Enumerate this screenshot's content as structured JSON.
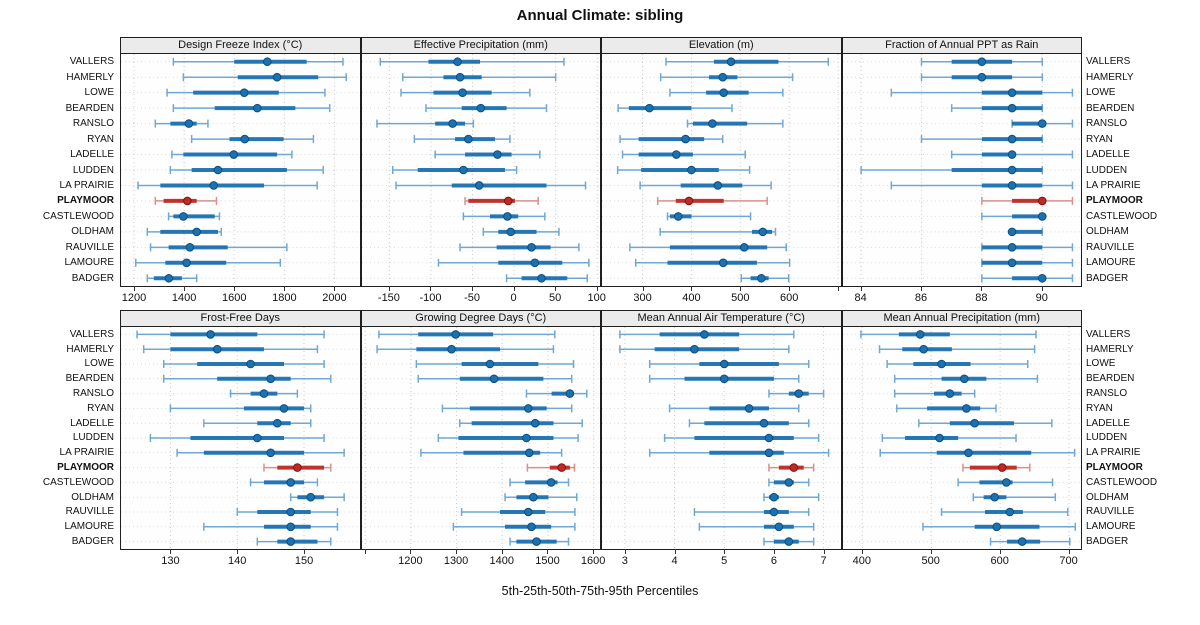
{
  "page": {
    "title": "Annual Climate: sibling",
    "caption": "5th-25th-50th-75th-95th Percentiles"
  },
  "sites": [
    "VALLERS",
    "HAMERLY",
    "LOWE",
    "BEARDEN",
    "RANSLO",
    "RYAN",
    "LADELLE",
    "LUDDEN",
    "LA PRAIRIE",
    "PLAYMOOR",
    "CASTLEWOOD",
    "OLDHAM",
    "RAUVILLE",
    "LAMOURE",
    "BADGER"
  ],
  "highlight_site": "PLAYMOOR",
  "percentiles": [
    "5th",
    "25th",
    "50th",
    "75th",
    "95th"
  ],
  "colors": {
    "blue": "#1c72b1",
    "blue_light": "#6fa8d4",
    "blue_dark": "#0d4c7c",
    "red": "#bf2a25",
    "red_light": "#d98f8c",
    "red_dark": "#7e1512",
    "grid": "#cbcbcb",
    "row_grid": "#d9d9d9",
    "strip_bg": "#ebebeb",
    "border": "#1f1f1f"
  },
  "chart_data": [
    {
      "type": "percentile-dotplot",
      "row": 0,
      "title": "Design Freeze Index (°C)",
      "xlim": [
        1148,
        2100
      ],
      "ticks": [
        {
          "v": 1200,
          "label": "1200"
        },
        {
          "v": 1400,
          "label": "1400"
        },
        {
          "v": 1600,
          "label": "1600"
        },
        {
          "v": 1800,
          "label": "1800"
        },
        {
          "v": 2000,
          "label": "2000"
        }
      ],
      "values": [
        [
          1357,
          1600,
          1732,
          1889,
          2034
        ],
        [
          1397,
          1614,
          1771,
          1935,
          2047
        ],
        [
          1332,
          1436,
          1640,
          1778,
          1962
        ],
        [
          1357,
          1522,
          1692,
          1844,
          1981
        ],
        [
          1285,
          1345,
          1419,
          1450,
          1495
        ],
        [
          1430,
          1581,
          1642,
          1797,
          1916
        ],
        [
          1351,
          1397,
          1598,
          1771,
          1830
        ],
        [
          1345,
          1430,
          1535,
          1810,
          1955
        ],
        [
          1216,
          1305,
          1518,
          1719,
          1931
        ],
        [
          1285,
          1318,
          1413,
          1450,
          1529
        ],
        [
          1338,
          1357,
          1397,
          1522,
          1541
        ],
        [
          1253,
          1305,
          1450,
          1535,
          1548
        ],
        [
          1266,
          1338,
          1423,
          1574,
          1810
        ],
        [
          1207,
          1325,
          1410,
          1568,
          1784
        ],
        [
          1253,
          1279,
          1339,
          1391,
          1450
        ]
      ]
    },
    {
      "type": "percentile-dotplot",
      "row": 0,
      "title": "Effective Precipitation (mm)",
      "xlim": [
        -183,
        104
      ],
      "ticks": [
        {
          "v": -150,
          "label": "-150"
        },
        {
          "v": -100,
          "label": "-100"
        },
        {
          "v": -50,
          "label": "-50"
        },
        {
          "v": 0,
          "label": "0"
        },
        {
          "v": 50,
          "label": "50"
        },
        {
          "v": 100,
          "label": "100"
        }
      ],
      "values": [
        [
          -161,
          -103,
          -68,
          -41,
          60
        ],
        [
          -134,
          -85,
          -65,
          -39,
          50
        ],
        [
          -136,
          -97,
          -62,
          -27,
          19
        ],
        [
          -106,
          -63,
          -40,
          -9,
          39
        ],
        [
          -165,
          -95,
          -74,
          -59,
          -49
        ],
        [
          -120,
          -71,
          -55,
          -23,
          -5
        ],
        [
          -95,
          -59,
          -20,
          -3,
          31
        ],
        [
          -146,
          -116,
          -61,
          -11,
          3
        ],
        [
          -142,
          -75,
          -42,
          39,
          86
        ],
        [
          -59,
          -55,
          -7,
          1,
          29
        ],
        [
          -61,
          -29,
          -8,
          5,
          37
        ],
        [
          -37,
          -19,
          -4,
          27,
          54
        ],
        [
          -65,
          -21,
          21,
          44,
          78
        ],
        [
          -91,
          -19,
          25,
          58,
          90
        ],
        [
          -9,
          9,
          33,
          64,
          88
        ]
      ]
    },
    {
      "type": "percentile-dotplot",
      "row": 0,
      "title": "Elevation (m)",
      "xlim": [
        217,
        705
      ],
      "ticks": [
        {
          "v": 300,
          "label": "300"
        },
        {
          "v": 400,
          "label": "400"
        },
        {
          "v": 500,
          "label": "500"
        },
        {
          "v": 600,
          "label": "600"
        },
        {
          "v": 700,
          "label": ""
        }
      ],
      "values": [
        [
          348,
          446,
          481,
          578,
          680
        ],
        [
          337,
          436,
          464,
          494,
          607
        ],
        [
          356,
          430,
          466,
          517,
          587
        ],
        [
          250,
          272,
          314,
          400,
          483
        ],
        [
          392,
          403,
          443,
          514,
          587
        ],
        [
          254,
          292,
          388,
          426,
          464
        ],
        [
          259,
          292,
          369,
          403,
          510
        ],
        [
          249,
          297,
          400,
          456,
          519
        ],
        [
          295,
          378,
          454,
          504,
          563
        ],
        [
          331,
          368,
          395,
          466,
          555
        ],
        [
          351,
          356,
          373,
          400,
          521
        ],
        [
          336,
          524,
          546,
          565,
          572
        ],
        [
          274,
          356,
          508,
          555,
          594
        ],
        [
          286,
          351,
          465,
          534,
          601
        ],
        [
          502,
          521,
          543,
          558,
          599
        ]
      ]
    },
    {
      "type": "percentile-dotplot",
      "row": 0,
      "title": "Fraction of Annual PPT as Rain",
      "xlim": [
        83.4,
        91.3
      ],
      "ticks": [
        {
          "v": 84,
          "label": "84"
        },
        {
          "v": 86,
          "label": "86"
        },
        {
          "v": 88,
          "label": "88"
        },
        {
          "v": 90,
          "label": "90"
        }
      ],
      "values": [
        [
          86,
          87,
          88,
          89,
          90
        ],
        [
          86,
          87,
          88,
          89,
          90
        ],
        [
          85,
          88,
          89,
          90,
          91
        ],
        [
          87,
          88,
          89,
          90,
          90
        ],
        [
          89,
          89,
          90,
          90,
          91
        ],
        [
          86,
          88,
          89,
          90,
          90
        ],
        [
          87,
          88,
          89,
          89,
          91
        ],
        [
          84,
          87,
          89,
          90,
          90
        ],
        [
          85,
          88,
          89,
          90,
          91
        ],
        [
          88,
          89,
          90,
          90,
          91
        ],
        [
          88,
          89,
          90,
          90,
          90
        ],
        [
          89,
          89,
          89,
          90,
          90
        ],
        [
          88,
          88,
          89,
          90,
          91
        ],
        [
          88,
          88,
          89,
          90,
          91
        ],
        [
          88,
          89,
          90,
          90,
          91
        ]
      ]
    },
    {
      "type": "percentile-dotplot",
      "row": 1,
      "title": "Frost-Free Days",
      "xlim": [
        122.6,
        158.3
      ],
      "ticks": [
        {
          "v": 130,
          "label": "130"
        },
        {
          "v": 140,
          "label": "140"
        },
        {
          "v": 150,
          "label": "150"
        }
      ],
      "values": [
        [
          125,
          130,
          136,
          143,
          153
        ],
        [
          126,
          130,
          137,
          144,
          152
        ],
        [
          129,
          134,
          142,
          147,
          153
        ],
        [
          129,
          137,
          145,
          148,
          154
        ],
        [
          139,
          142,
          144,
          146,
          149
        ],
        [
          130,
          141,
          147,
          150,
          151
        ],
        [
          135,
          143,
          146,
          148,
          151
        ],
        [
          127,
          133,
          143,
          147,
          153
        ],
        [
          131,
          135,
          145,
          150,
          156
        ],
        [
          144,
          146,
          149,
          153,
          154
        ],
        [
          142,
          144,
          148,
          150,
          152
        ],
        [
          148,
          149,
          151,
          153,
          156
        ],
        [
          140,
          143,
          148,
          151,
          155
        ],
        [
          135,
          144,
          148,
          151,
          155
        ],
        [
          143,
          146,
          148,
          152,
          154
        ]
      ]
    },
    {
      "type": "percentile-dotplot",
      "row": 1,
      "title": "Growing Degree Days (°C)",
      "xlim": [
        1093,
        1615
      ],
      "ticks": [
        {
          "v": 1100,
          "label": ""
        },
        {
          "v": 1200,
          "label": "1200"
        },
        {
          "v": 1300,
          "label": "1300"
        },
        {
          "v": 1400,
          "label": "1400"
        },
        {
          "v": 1500,
          "label": "1500"
        },
        {
          "v": 1600,
          "label": "1600"
        }
      ],
      "values": [
        [
          1130,
          1216,
          1298,
          1380,
          1515
        ],
        [
          1126,
          1212,
          1289,
          1395,
          1512
        ],
        [
          1212,
          1311,
          1373,
          1479,
          1556
        ],
        [
          1216,
          1307,
          1382,
          1490,
          1552
        ],
        [
          1453,
          1508,
          1548,
          1556,
          1585
        ],
        [
          1269,
          1329,
          1457,
          1497,
          1552
        ],
        [
          1307,
          1333,
          1472,
          1512,
          1575
        ],
        [
          1260,
          1304,
          1453,
          1512,
          1566
        ],
        [
          1222,
          1315,
          1459,
          1483,
          1530
        ],
        [
          1455,
          1504,
          1530,
          1548,
          1558
        ],
        [
          1417,
          1450,
          1507,
          1521,
          1545
        ],
        [
          1406,
          1431,
          1468,
          1501,
          1563
        ],
        [
          1311,
          1395,
          1457,
          1494,
          1559
        ],
        [
          1293,
          1406,
          1464,
          1507,
          1559
        ],
        [
          1417,
          1431,
          1475,
          1519,
          1545
        ]
      ]
    },
    {
      "type": "percentile-dotplot",
      "row": 1,
      "title": "Mean Annual Air Temperature (°C)",
      "xlim": [
        2.54,
        7.34
      ],
      "ticks": [
        {
          "v": 3,
          "label": "3"
        },
        {
          "v": 4,
          "label": "4"
        },
        {
          "v": 5,
          "label": "5"
        },
        {
          "v": 6,
          "label": "6"
        },
        {
          "v": 7,
          "label": "7"
        }
      ],
      "values": [
        [
          2.9,
          3.7,
          4.6,
          5.3,
          6.4
        ],
        [
          2.9,
          3.6,
          4.4,
          5.3,
          6.3
        ],
        [
          3.5,
          4.5,
          5.0,
          6.1,
          6.7
        ],
        [
          3.5,
          4.2,
          5.0,
          6.0,
          6.5
        ],
        [
          5.9,
          6.3,
          6.5,
          6.7,
          7.0
        ],
        [
          3.9,
          4.7,
          5.5,
          5.9,
          6.5
        ],
        [
          4.3,
          4.6,
          5.8,
          6.3,
          6.7
        ],
        [
          3.8,
          4.4,
          5.9,
          6.4,
          6.9
        ],
        [
          3.5,
          4.7,
          5.9,
          6.2,
          7.1
        ],
        [
          5.9,
          6.1,
          6.4,
          6.6,
          6.8
        ],
        [
          5.9,
          6.0,
          6.3,
          6.4,
          6.7
        ],
        [
          5.8,
          5.9,
          6.0,
          6.1,
          6.9
        ],
        [
          4.4,
          5.8,
          6.0,
          6.3,
          6.7
        ],
        [
          4.5,
          5.8,
          6.1,
          6.4,
          6.8
        ],
        [
          5.8,
          6.0,
          6.3,
          6.5,
          6.8
        ]
      ]
    },
    {
      "type": "percentile-dotplot",
      "row": 1,
      "title": "Mean Annual Precipitation (mm)",
      "xlim": [
        372,
        718
      ],
      "ticks": [
        {
          "v": 400,
          "label": "400"
        },
        {
          "v": 500,
          "label": "500"
        },
        {
          "v": 600,
          "label": "600"
        },
        {
          "v": 700,
          "label": "700"
        }
      ],
      "values": [
        [
          398,
          453,
          484,
          527,
          652
        ],
        [
          425,
          458,
          489,
          530,
          650
        ],
        [
          436,
          474,
          515,
          557,
          640
        ],
        [
          447,
          515,
          548,
          580,
          654
        ],
        [
          447,
          504,
          527,
          544,
          563
        ],
        [
          450,
          494,
          551,
          571,
          594
        ],
        [
          482,
          527,
          563,
          620,
          675
        ],
        [
          429,
          462,
          512,
          539,
          623
        ],
        [
          426,
          508,
          554,
          645,
          708
        ],
        [
          546,
          556,
          603,
          624,
          643
        ],
        [
          539,
          570,
          609,
          618,
          676
        ],
        [
          561,
          576,
          592,
          609,
          680
        ],
        [
          515,
          578,
          614,
          633,
          698
        ],
        [
          488,
          563,
          595,
          657,
          709
        ],
        [
          586,
          610,
          632,
          658,
          701
        ]
      ]
    }
  ]
}
